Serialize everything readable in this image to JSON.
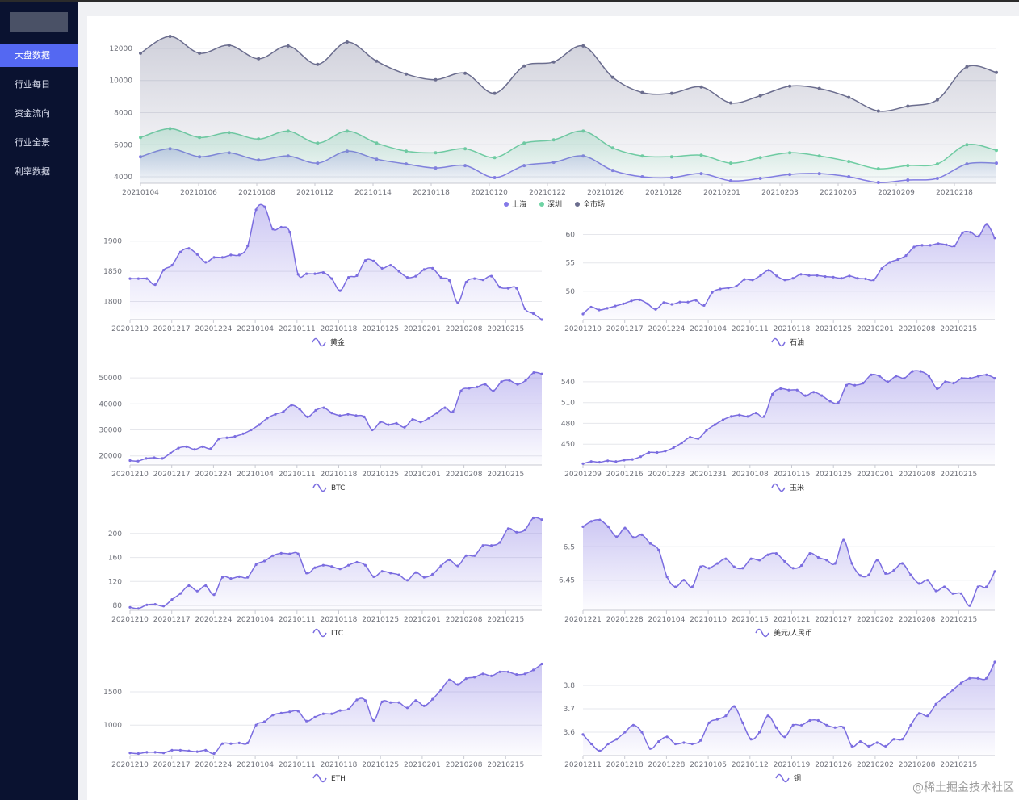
{
  "sidebar": {
    "items": [
      {
        "label": "大盘数据",
        "active": true
      },
      {
        "label": "行业每日",
        "active": false
      },
      {
        "label": "资金流向",
        "active": false
      },
      {
        "label": "行业全景",
        "active": false
      },
      {
        "label": "利率数据",
        "active": false
      }
    ]
  },
  "watermark": "@稀土掘金技术社区",
  "colors": {
    "accent": "#5468f2",
    "sidebar_bg": "#0a1230",
    "shanghai": "#8479e8",
    "shenzhen": "#6fd3a4",
    "market": "#6b6d8e"
  },
  "chart_data": [
    {
      "id": "market",
      "type": "area",
      "x_ticks": [
        "20210104",
        "20210106",
        "20210108",
        "20210112",
        "20210114",
        "20210118",
        "20210120",
        "20210122",
        "20210126",
        "20210128",
        "20210201",
        "20210203",
        "20210205",
        "20210209",
        "20210218"
      ],
      "y_ticks": [
        "4000",
        "6000",
        "8000",
        "10000",
        "12000"
      ],
      "ylim": [
        3600,
        12800
      ],
      "series": [
        {
          "name": "上海",
          "color": "#8479e8",
          "values": [
            5250,
            5750,
            5250,
            5500,
            5050,
            5300,
            4850,
            5600,
            5100,
            4800,
            4550,
            4700,
            3950,
            4700,
            4900,
            5300,
            4400,
            4000,
            3950,
            4200,
            3750,
            3900,
            4150,
            4200,
            4000,
            3650,
            3800,
            3900,
            4800,
            4850
          ]
        },
        {
          "name": "深圳",
          "color": "#6fd3a4",
          "values": [
            6450,
            7000,
            6450,
            6750,
            6350,
            6850,
            6100,
            6850,
            6100,
            5600,
            5500,
            5750,
            5200,
            6100,
            6300,
            6850,
            5800,
            5300,
            5250,
            5350,
            4850,
            5200,
            5500,
            5300,
            4950,
            4500,
            4700,
            4800,
            6000,
            5650
          ]
        },
        {
          "name": "全市场",
          "color": "#6b6d8e",
          "values": [
            11700,
            12750,
            11700,
            12200,
            11350,
            12150,
            11000,
            12400,
            11200,
            10400,
            10050,
            10450,
            9200,
            10900,
            11150,
            12150,
            10200,
            9250,
            9200,
            9600,
            8600,
            9050,
            9650,
            9500,
            8950,
            8100,
            8400,
            8800,
            10850,
            10500
          ]
        }
      ]
    },
    {
      "id": "gold",
      "type": "area",
      "x_ticks": [
        "20201210",
        "20201217",
        "20201224",
        "20210104",
        "20210111",
        "20210118",
        "20210125",
        "20210201",
        "20210208",
        "20210215"
      ],
      "y_ticks": [
        "1800",
        "1850",
        "1900"
      ],
      "ylim": [
        1770,
        1925
      ],
      "series": [
        {
          "name": "黄金",
          "color": "#7b6de0",
          "values": [
            1838,
            1838,
            1838,
            1828,
            1852,
            1860,
            1882,
            1888,
            1878,
            1865,
            1873,
            1873,
            1877,
            1877,
            1892,
            1952,
            1957,
            1920,
            1923,
            1915,
            1845,
            1846,
            1846,
            1848,
            1838,
            1818,
            1840,
            1843,
            1868,
            1867,
            1855,
            1860,
            1850,
            1840,
            1842,
            1853,
            1855,
            1840,
            1835,
            1798,
            1832,
            1838,
            1836,
            1842,
            1824,
            1822,
            1822,
            1788,
            1780,
            1770
          ]
        }
      ]
    },
    {
      "id": "oil",
      "type": "area",
      "x_ticks": [
        "20201210",
        "20201217",
        "20201224",
        "20210104",
        "20210111",
        "20210118",
        "20210125",
        "20210201",
        "20210208",
        "20210215"
      ],
      "y_ticks": [
        "50",
        "55",
        "60"
      ],
      "ylim": [
        45,
        61.5
      ],
      "series": [
        {
          "name": "石油",
          "color": "#7b6de0",
          "values": [
            46,
            47.2,
            46.7,
            47,
            47.4,
            47.8,
            48.3,
            48.5,
            47.8,
            46.8,
            48,
            47.7,
            48.1,
            48.1,
            48.4,
            47.5,
            49.8,
            50.4,
            50.6,
            50.9,
            52.1,
            52,
            52.8,
            53.7,
            52.7,
            52,
            52.3,
            53,
            52.8,
            52.8,
            52.6,
            52.5,
            52.3,
            52.7,
            52.3,
            52.2,
            52,
            54,
            55.1,
            55.6,
            56.3,
            57.8,
            58.1,
            58.1,
            58.4,
            58.2,
            58,
            60.3,
            60.4,
            59.7,
            61.8,
            59.4
          ]
        }
      ]
    },
    {
      "id": "btc",
      "type": "area",
      "x_ticks": [
        "20201210",
        "20201217",
        "20201224",
        "20210104",
        "20210111",
        "20210118",
        "20210125",
        "20210201",
        "20210208",
        "20210215"
      ],
      "y_ticks": [
        "20000",
        "30000",
        "40000",
        "50000"
      ],
      "ylim": [
        16500,
        52500
      ],
      "series": [
        {
          "name": "BTC",
          "color": "#7b6de0",
          "values": [
            18200,
            18000,
            19000,
            19300,
            19000,
            21000,
            23000,
            23500,
            22500,
            23500,
            22800,
            26500,
            27000,
            27500,
            28500,
            30000,
            32000,
            34500,
            36000,
            37000,
            39500,
            38000,
            35000,
            37500,
            38500,
            36500,
            35500,
            36000,
            35500,
            35000,
            30000,
            33000,
            32000,
            32500,
            31000,
            34000,
            33000,
            34500,
            36500,
            38500,
            37000,
            45000,
            46000,
            46500,
            47500,
            45000,
            48500,
            49000,
            47500,
            49000,
            52000,
            51500
          ]
        }
      ]
    },
    {
      "id": "corn",
      "type": "area",
      "x_ticks": [
        "20201209",
        "20201216",
        "20201223",
        "20201231",
        "20210108",
        "20210115",
        "20210125",
        "20210201",
        "20210208",
        "20210215"
      ],
      "y_ticks": [
        "450",
        "480",
        "510",
        "540"
      ],
      "ylim": [
        420,
        555
      ],
      "series": [
        {
          "name": "玉米",
          "color": "#7b6de0",
          "values": [
            422,
            425,
            424,
            426,
            425,
            427,
            428,
            432,
            438,
            438,
            440,
            445,
            452,
            460,
            458,
            470,
            478,
            485,
            490,
            492,
            490,
            495,
            490,
            522,
            530,
            528,
            528,
            520,
            525,
            520,
            512,
            510,
            535,
            535,
            538,
            550,
            548,
            540,
            548,
            545,
            555,
            555,
            548,
            530,
            540,
            538,
            545,
            545,
            548,
            550,
            545
          ]
        }
      ]
    },
    {
      "id": "ltc",
      "type": "area",
      "x_ticks": [
        "20201210",
        "20201217",
        "20201224",
        "20210104",
        "20210111",
        "20210118",
        "20210125",
        "20210201",
        "20210208",
        "20210215"
      ],
      "y_ticks": [
        "80",
        "120",
        "160",
        "200"
      ],
      "ylim": [
        72,
        228
      ],
      "series": [
        {
          "name": "LTC",
          "color": "#7b6de0",
          "values": [
            77,
            75,
            81,
            82,
            79,
            90,
            100,
            113,
            104,
            113,
            98,
            127,
            125,
            128,
            127,
            148,
            154,
            163,
            167,
            166,
            166,
            134,
            143,
            147,
            145,
            141,
            147,
            152,
            147,
            128,
            137,
            134,
            131,
            122,
            135,
            127,
            132,
            146,
            156,
            146,
            163,
            163,
            180,
            180,
            185,
            208,
            202,
            206,
            226,
            223
          ]
        }
      ]
    },
    {
      "id": "usdcny",
      "type": "area",
      "x_ticks": [
        "20201221",
        "20201228",
        "20210104",
        "20210110",
        "20210115",
        "20210121",
        "20210127",
        "20210202",
        "20210208",
        "20210215"
      ],
      "y_ticks": [
        "6.45",
        "6.5"
      ],
      "ylim": [
        6.405,
        6.545
      ],
      "series": [
        {
          "name": "美元/人民币",
          "color": "#7b6de0",
          "values": [
            6.53,
            6.538,
            6.54,
            6.53,
            6.515,
            6.528,
            6.514,
            6.518,
            6.505,
            6.495,
            6.455,
            6.44,
            6.45,
            6.44,
            6.47,
            6.468,
            6.475,
            6.482,
            6.47,
            6.468,
            6.482,
            6.48,
            6.488,
            6.49,
            6.478,
            6.468,
            6.472,
            6.49,
            6.484,
            6.48,
            6.475,
            6.51,
            6.475,
            6.457,
            6.458,
            6.48,
            6.46,
            6.465,
            6.475,
            6.458,
            6.445,
            6.45,
            6.434,
            6.44,
            6.43,
            6.43,
            6.412,
            6.44,
            6.44,
            6.463
          ]
        }
      ]
    },
    {
      "id": "eth",
      "type": "area",
      "x_ticks": [
        "20201210",
        "20201217",
        "20201224",
        "20210104",
        "20210111",
        "20210118",
        "20210125",
        "20210201",
        "20210208",
        "20210215"
      ],
      "y_ticks": [
        "1000",
        "1500"
      ],
      "ylim": [
        540,
        1950
      ],
      "series": [
        {
          "name": "ETH",
          "color": "#7b6de0",
          "values": [
            580,
            570,
            590,
            590,
            580,
            620,
            620,
            610,
            600,
            620,
            570,
            720,
            720,
            730,
            730,
            1000,
            1050,
            1150,
            1180,
            1200,
            1210,
            1060,
            1120,
            1170,
            1170,
            1220,
            1240,
            1380,
            1370,
            1070,
            1350,
            1340,
            1340,
            1260,
            1370,
            1290,
            1390,
            1530,
            1680,
            1610,
            1700,
            1720,
            1770,
            1740,
            1800,
            1800,
            1760,
            1770,
            1830,
            1920
          ]
        }
      ]
    },
    {
      "id": "copper",
      "type": "area",
      "x_ticks": [
        "20201211",
        "20201218",
        "20201228",
        "20210105",
        "20210112",
        "20210119",
        "20210126",
        "20210202",
        "20210208",
        "20210215"
      ],
      "y_ticks": [
        "3.6",
        "3.7",
        "3.8"
      ],
      "ylim": [
        3.5,
        3.9
      ],
      "series": [
        {
          "name": "铜",
          "color": "#7b6de0",
          "values": [
            3.59,
            3.55,
            3.52,
            3.55,
            3.57,
            3.6,
            3.63,
            3.6,
            3.53,
            3.56,
            3.58,
            3.55,
            3.555,
            3.55,
            3.565,
            3.64,
            3.655,
            3.67,
            3.71,
            3.64,
            3.57,
            3.6,
            3.67,
            3.62,
            3.58,
            3.63,
            3.63,
            3.65,
            3.65,
            3.63,
            3.62,
            3.62,
            3.54,
            3.56,
            3.54,
            3.555,
            3.54,
            3.57,
            3.57,
            3.63,
            3.68,
            3.67,
            3.72,
            3.75,
            3.78,
            3.81,
            3.83,
            3.83,
            3.83,
            3.9
          ]
        }
      ]
    }
  ]
}
